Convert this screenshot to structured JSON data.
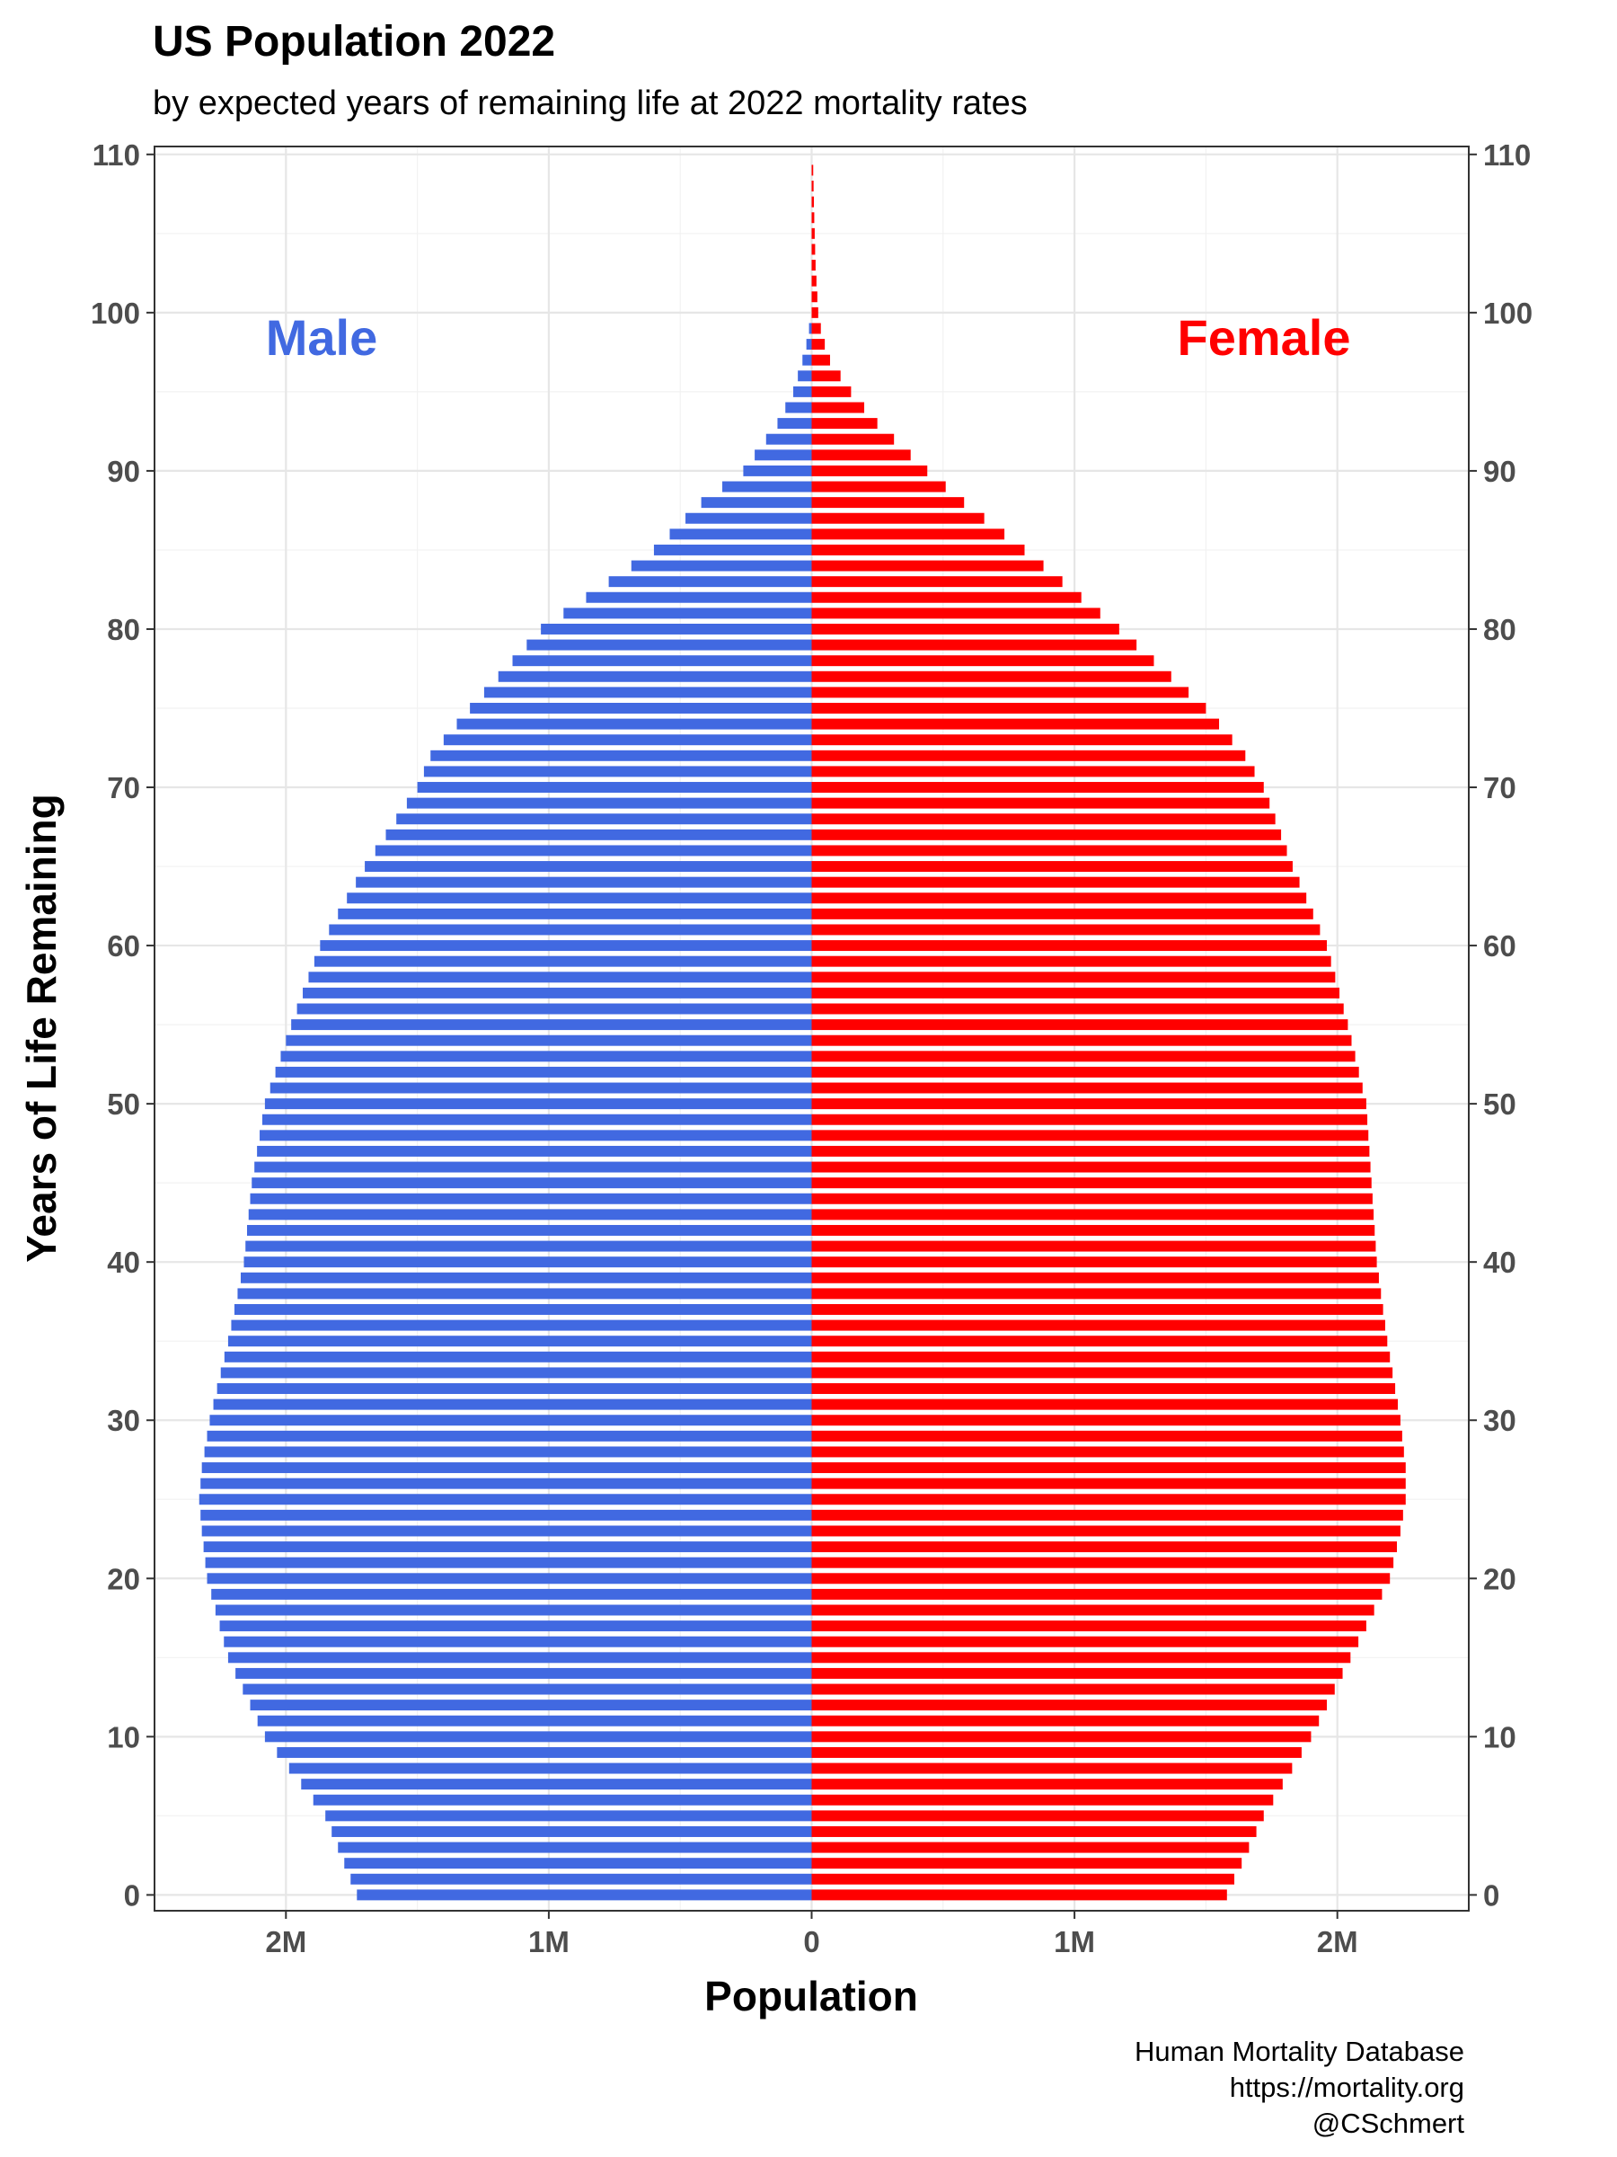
{
  "title": "US Population 2022",
  "subtitle": "by expected years of remaining life at 2022 mortality rates",
  "caption": [
    "Human Mortality Database",
    "https://mortality.org",
    "@CSchmert"
  ],
  "chart_data": {
    "type": "bar",
    "orientation": "horizontal",
    "xlabel": "Population",
    "ylabel": "Years of Life Remaining",
    "xlim": [
      -2.5,
      2.5
    ],
    "ylim": [
      0,
      110
    ],
    "x_unit": "millions",
    "x_ticks": [
      -2,
      -1,
      0,
      1,
      2
    ],
    "x_tick_labels": [
      "2M",
      "1M",
      "0",
      "1M",
      "2M"
    ],
    "y_ticks": [
      0,
      10,
      20,
      30,
      40,
      50,
      60,
      70,
      80,
      90,
      100,
      110
    ],
    "y_tick_labels": [
      "0",
      "10",
      "20",
      "30",
      "40",
      "50",
      "60",
      "70",
      "80",
      "90",
      "100",
      "110"
    ],
    "y_axis_both_sides": true,
    "grid": true,
    "group_labels": [
      {
        "text": "Male",
        "color": "#4169E1",
        "position": "upper-left"
      },
      {
        "text": "Female",
        "color": "#FF0000",
        "position": "upper-right"
      }
    ],
    "series": [
      {
        "name": "Male",
        "color": "#4169E1",
        "side": "left",
        "anchors_years": [
          0,
          5,
          10,
          15,
          20,
          23,
          25,
          27,
          30,
          35,
          40,
          45,
          50,
          55,
          60,
          65,
          70,
          72,
          75,
          80,
          85,
          88,
          90,
          93,
          95,
          97,
          98,
          99,
          100
        ],
        "anchors_values_m": [
          1.73,
          1.85,
          2.08,
          2.22,
          2.3,
          2.32,
          2.33,
          2.32,
          2.29,
          2.22,
          2.16,
          2.13,
          2.08,
          1.98,
          1.87,
          1.7,
          1.5,
          1.45,
          1.3,
          1.03,
          0.6,
          0.42,
          0.26,
          0.13,
          0.07,
          0.035,
          0.02,
          0.01,
          0
        ]
      },
      {
        "name": "Female",
        "color": "#FF0000",
        "side": "right",
        "anchors_years": [
          0,
          5,
          10,
          15,
          20,
          23,
          25,
          27,
          30,
          35,
          40,
          45,
          50,
          55,
          60,
          65,
          70,
          72,
          75,
          80,
          85,
          88,
          90,
          93,
          95,
          97,
          98,
          99,
          100,
          103,
          106,
          109
        ],
        "anchors_values_m": [
          1.58,
          1.72,
          1.9,
          2.05,
          2.2,
          2.24,
          2.26,
          2.26,
          2.24,
          2.19,
          2.15,
          2.13,
          2.11,
          2.04,
          1.96,
          1.83,
          1.72,
          1.65,
          1.5,
          1.17,
          0.81,
          0.58,
          0.44,
          0.25,
          0.15,
          0.07,
          0.05,
          0.035,
          0.025,
          0.015,
          0.01,
          0.006
        ]
      }
    ]
  }
}
